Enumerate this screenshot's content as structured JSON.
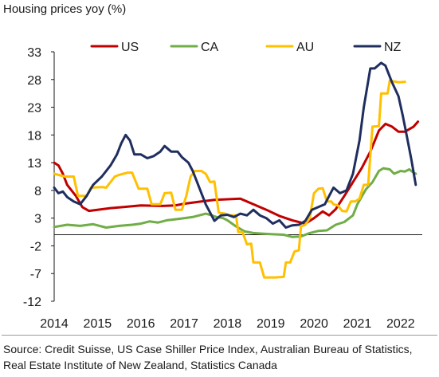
{
  "title": "Housing prices yoy (%)",
  "source": "Source: Credit Suisse, US Case Shiller Price Index, Australian Bureau of Statistics, Real Estate Institute of New Zealand, Statistics Canada",
  "chart_data": {
    "type": "line",
    "title": "Housing prices yoy (%)",
    "xlabel": "",
    "ylabel": "",
    "x_ticks": [
      "2014",
      "2015",
      "2016",
      "2017",
      "2018",
      "2019",
      "2020",
      "2021",
      "2022"
    ],
    "y_ticks": [
      "33",
      "28",
      "23",
      "18",
      "13",
      "8",
      "3",
      "-2",
      "-7",
      "-12"
    ],
    "ylim": [
      -12,
      33
    ],
    "xlim": [
      2014.0,
      2022.5
    ],
    "grid": false,
    "legend_position": "top",
    "series": [
      {
        "name": "US",
        "color": "#c00000",
        "points": [
          [
            2014.0,
            13.0
          ],
          [
            2014.1,
            12.5
          ],
          [
            2014.2,
            11.0
          ],
          [
            2014.3,
            9.0
          ],
          [
            2014.5,
            7.0
          ],
          [
            2014.65,
            5.0
          ],
          [
            2014.8,
            4.3
          ],
          [
            2015.0,
            4.5
          ],
          [
            2015.3,
            4.8
          ],
          [
            2015.6,
            5.0
          ],
          [
            2016.0,
            5.3
          ],
          [
            2016.5,
            5.2
          ],
          [
            2016.8,
            5.3
          ],
          [
            2017.0,
            5.6
          ],
          [
            2017.4,
            6.0
          ],
          [
            2017.7,
            6.3
          ],
          [
            2018.0,
            6.4
          ],
          [
            2018.3,
            6.5
          ],
          [
            2018.6,
            5.5
          ],
          [
            2018.9,
            4.5
          ],
          [
            2019.2,
            3.4
          ],
          [
            2019.5,
            2.6
          ],
          [
            2019.8,
            2.0
          ],
          [
            2020.0,
            3.0
          ],
          [
            2020.2,
            4.2
          ],
          [
            2020.35,
            3.5
          ],
          [
            2020.5,
            4.6
          ],
          [
            2020.7,
            7.0
          ],
          [
            2020.9,
            9.5
          ],
          [
            2021.1,
            12.0
          ],
          [
            2021.3,
            15.0
          ],
          [
            2021.5,
            18.8
          ],
          [
            2021.65,
            20.0
          ],
          [
            2021.8,
            19.5
          ],
          [
            2021.95,
            18.6
          ],
          [
            2022.1,
            18.6
          ],
          [
            2022.3,
            19.5
          ],
          [
            2022.4,
            20.4
          ]
        ]
      },
      {
        "name": "CA",
        "color": "#70ad47",
        "points": [
          [
            2014.0,
            1.4
          ],
          [
            2014.3,
            1.8
          ],
          [
            2014.6,
            1.6
          ],
          [
            2014.9,
            1.9
          ],
          [
            2015.2,
            1.3
          ],
          [
            2015.5,
            1.6
          ],
          [
            2015.8,
            1.8
          ],
          [
            2016.0,
            2.0
          ],
          [
            2016.2,
            2.4
          ],
          [
            2016.4,
            2.2
          ],
          [
            2016.6,
            2.6
          ],
          [
            2016.8,
            2.8
          ],
          [
            2017.0,
            3.0
          ],
          [
            2017.2,
            3.2
          ],
          [
            2017.35,
            3.5
          ],
          [
            2017.5,
            3.8
          ],
          [
            2017.6,
            3.6
          ],
          [
            2017.75,
            3.2
          ],
          [
            2017.9,
            3.0
          ],
          [
            2018.0,
            2.6
          ],
          [
            2018.2,
            1.5
          ],
          [
            2018.4,
            0.6
          ],
          [
            2018.6,
            0.3
          ],
          [
            2018.8,
            0.2
          ],
          [
            2019.0,
            0.1
          ],
          [
            2019.3,
            0.0
          ],
          [
            2019.5,
            -0.4
          ],
          [
            2019.7,
            -0.3
          ],
          [
            2019.9,
            0.3
          ],
          [
            2020.1,
            0.7
          ],
          [
            2020.3,
            0.8
          ],
          [
            2020.5,
            1.8
          ],
          [
            2020.7,
            2.3
          ],
          [
            2020.9,
            3.5
          ],
          [
            2021.0,
            5.5
          ],
          [
            2021.2,
            8.2
          ],
          [
            2021.35,
            9.5
          ],
          [
            2021.5,
            11.5
          ],
          [
            2021.6,
            12.0
          ],
          [
            2021.75,
            11.8
          ],
          [
            2021.85,
            11.0
          ],
          [
            2022.0,
            11.5
          ],
          [
            2022.1,
            11.4
          ],
          [
            2022.2,
            11.8
          ],
          [
            2022.3,
            11.2
          ],
          [
            2022.35,
            11.0
          ]
        ]
      },
      {
        "name": "AU",
        "color": "#ffc000",
        "points": [
          [
            2014.0,
            11.0
          ],
          [
            2014.25,
            10.5
          ],
          [
            2014.45,
            10.5
          ],
          [
            2014.55,
            7.0
          ],
          [
            2014.75,
            7.0
          ],
          [
            2014.85,
            8.5
          ],
          [
            2015.1,
            8.6
          ],
          [
            2015.2,
            8.5
          ],
          [
            2015.3,
            9.5
          ],
          [
            2015.4,
            10.5
          ],
          [
            2015.5,
            10.8
          ],
          [
            2015.6,
            11.0
          ],
          [
            2015.7,
            11.2
          ],
          [
            2015.8,
            11.2
          ],
          [
            2015.95,
            8.3
          ],
          [
            2016.15,
            8.3
          ],
          [
            2016.25,
            5.5
          ],
          [
            2016.45,
            5.5
          ],
          [
            2016.55,
            7.5
          ],
          [
            2016.7,
            7.6
          ],
          [
            2016.8,
            4.5
          ],
          [
            2016.95,
            4.5
          ],
          [
            2017.05,
            7.0
          ],
          [
            2017.15,
            10.5
          ],
          [
            2017.25,
            11.5
          ],
          [
            2017.4,
            11.5
          ],
          [
            2017.5,
            11.0
          ],
          [
            2017.6,
            9.5
          ],
          [
            2017.7,
            9.6
          ],
          [
            2017.8,
            4.0
          ],
          [
            2017.95,
            3.8
          ],
          [
            2018.05,
            3.5
          ],
          [
            2018.2,
            3.5
          ],
          [
            2018.25,
            0.5
          ],
          [
            2018.35,
            0.5
          ],
          [
            2018.45,
            -1.7
          ],
          [
            2018.55,
            -1.6
          ],
          [
            2018.6,
            -5.0
          ],
          [
            2018.75,
            -5.0
          ],
          [
            2018.85,
            -7.7
          ],
          [
            2019.1,
            -7.7
          ],
          [
            2019.3,
            -7.6
          ],
          [
            2019.35,
            -5.0
          ],
          [
            2019.45,
            -5.0
          ],
          [
            2019.55,
            -3.0
          ],
          [
            2019.65,
            -2.8
          ],
          [
            2019.7,
            1.5
          ],
          [
            2019.8,
            1.8
          ],
          [
            2019.9,
            3.0
          ],
          [
            2020.0,
            7.5
          ],
          [
            2020.1,
            8.3
          ],
          [
            2020.2,
            8.4
          ],
          [
            2020.3,
            6.0
          ],
          [
            2020.4,
            6.0
          ],
          [
            2020.45,
            5.5
          ],
          [
            2020.55,
            5.3
          ],
          [
            2020.65,
            4.3
          ],
          [
            2020.75,
            4.2
          ],
          [
            2020.85,
            6.0
          ],
          [
            2020.95,
            6.0
          ],
          [
            2021.05,
            6.5
          ],
          [
            2021.15,
            9.0
          ],
          [
            2021.25,
            9.0
          ],
          [
            2021.35,
            19.5
          ],
          [
            2021.5,
            19.6
          ],
          [
            2021.55,
            25.5
          ],
          [
            2021.7,
            25.5
          ],
          [
            2021.75,
            27.8
          ],
          [
            2021.9,
            27.6
          ],
          [
            2021.95,
            27.5
          ],
          [
            2022.1,
            27.6
          ]
        ]
      },
      {
        "name": "NZ",
        "color": "#1f2e5e",
        "points": [
          [
            2014.0,
            8.5
          ],
          [
            2014.1,
            7.5
          ],
          [
            2014.2,
            7.8
          ],
          [
            2014.3,
            6.8
          ],
          [
            2014.45,
            6.0
          ],
          [
            2014.6,
            5.5
          ],
          [
            2014.75,
            7.0
          ],
          [
            2014.9,
            9.0
          ],
          [
            2015.1,
            10.5
          ],
          [
            2015.3,
            12.5
          ],
          [
            2015.45,
            14.5
          ],
          [
            2015.55,
            16.5
          ],
          [
            2015.65,
            18.0
          ],
          [
            2015.75,
            17.0
          ],
          [
            2015.85,
            14.5
          ],
          [
            2016.0,
            14.5
          ],
          [
            2016.15,
            13.8
          ],
          [
            2016.3,
            14.2
          ],
          [
            2016.45,
            15.0
          ],
          [
            2016.55,
            16.0
          ],
          [
            2016.7,
            15.0
          ],
          [
            2016.85,
            15.0
          ],
          [
            2016.95,
            14.0
          ],
          [
            2017.1,
            13.0
          ],
          [
            2017.2,
            11.5
          ],
          [
            2017.35,
            8.5
          ],
          [
            2017.5,
            5.5
          ],
          [
            2017.6,
            4.0
          ],
          [
            2017.7,
            2.5
          ],
          [
            2017.85,
            3.5
          ],
          [
            2018.0,
            3.6
          ],
          [
            2018.15,
            3.2
          ],
          [
            2018.3,
            3.8
          ],
          [
            2018.45,
            3.5
          ],
          [
            2018.6,
            4.5
          ],
          [
            2018.75,
            3.5
          ],
          [
            2018.9,
            3.0
          ],
          [
            2019.05,
            2.0
          ],
          [
            2019.2,
            2.6
          ],
          [
            2019.35,
            1.3
          ],
          [
            2019.5,
            1.7
          ],
          [
            2019.65,
            1.8
          ],
          [
            2019.8,
            2.5
          ],
          [
            2019.95,
            4.5
          ],
          [
            2020.1,
            5.0
          ],
          [
            2020.25,
            5.5
          ],
          [
            2020.35,
            7.0
          ],
          [
            2020.45,
            8.5
          ],
          [
            2020.6,
            7.5
          ],
          [
            2020.75,
            8.0
          ],
          [
            2020.9,
            11.0
          ],
          [
            2021.05,
            17.0
          ],
          [
            2021.15,
            23.0
          ],
          [
            2021.3,
            30.0
          ],
          [
            2021.4,
            30.0
          ],
          [
            2021.55,
            31.0
          ],
          [
            2021.65,
            30.5
          ],
          [
            2021.8,
            27.5
          ],
          [
            2021.95,
            25.0
          ],
          [
            2022.05,
            21.5
          ],
          [
            2022.15,
            17.5
          ],
          [
            2022.25,
            13.5
          ],
          [
            2022.35,
            9.0
          ]
        ]
      }
    ]
  }
}
